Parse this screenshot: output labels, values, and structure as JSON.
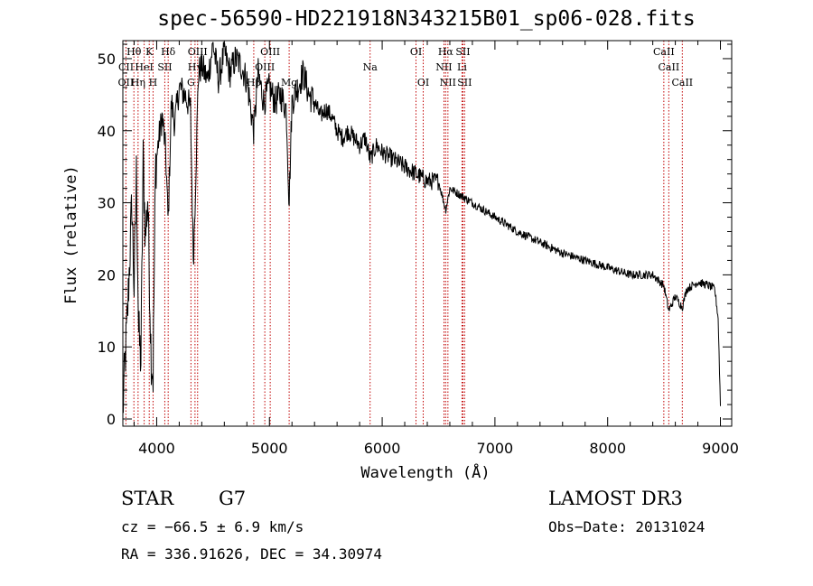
{
  "chart_data": {
    "type": "line",
    "title": "spec-56590-HD221918N343215B01_sp06-028.fits",
    "xlabel": "Wavelength (Å)",
    "ylabel": "Flux (relative)",
    "xlim": [
      3700,
      9100
    ],
    "ylim": [
      -1,
      52.5
    ],
    "xticks": [
      4000,
      5000,
      6000,
      7000,
      8000,
      9000
    ],
    "yticks": [
      0,
      10,
      20,
      30,
      40,
      50
    ],
    "series": [
      {
        "name": "flux",
        "x": [
          3700,
          3720,
          3740,
          3760,
          3780,
          3800,
          3820,
          3840,
          3860,
          3880,
          3900,
          3920,
          3935,
          3950,
          3968,
          3990,
          4020,
          4050,
          4080,
          4102,
          4130,
          4160,
          4200,
          4250,
          4300,
          4325,
          4340,
          4370,
          4400,
          4450,
          4500,
          4550,
          4600,
          4650,
          4700,
          4750,
          4800,
          4861,
          4900,
          4950,
          5000,
          5050,
          5100,
          5150,
          5175,
          5200,
          5250,
          5300,
          5350,
          5400,
          5450,
          5500,
          5550,
          5600,
          5650,
          5700,
          5750,
          5800,
          5850,
          5893,
          5950,
          6000,
          6100,
          6200,
          6300,
          6400,
          6500,
          6563,
          6600,
          6700,
          6800,
          7000,
          7200,
          7400,
          7600,
          7800,
          8000,
          8200,
          8400,
          8498,
          8542,
          8600,
          8662,
          8700,
          8800,
          8900,
          8950,
          8980,
          9000
        ],
        "values": [
          1,
          8,
          14,
          22,
          30,
          18,
          34,
          12,
          8,
          36,
          25,
          31,
          20,
          9,
          6,
          35,
          39,
          42,
          37,
          27,
          44,
          41,
          46,
          45,
          43,
          22,
          30,
          48,
          49,
          47,
          52,
          47,
          51,
          48,
          50,
          49,
          47,
          40,
          48,
          44,
          46,
          44,
          45,
          43,
          30,
          44,
          46,
          48,
          45,
          44,
          42,
          43,
          42,
          40,
          39,
          40,
          39,
          38,
          39,
          36,
          38,
          37,
          36,
          35,
          34,
          33,
          33,
          29,
          32,
          31,
          30,
          28,
          26,
          24.5,
          23,
          22,
          21,
          20,
          20,
          18.5,
          15,
          17,
          15.5,
          18,
          19,
          18.5,
          18,
          14,
          2
        ]
      }
    ],
    "line_labels": [
      {
        "text": "Hθ",
        "wl": 3798,
        "row": 0
      },
      {
        "text": "K",
        "wl": 3934,
        "row": 0
      },
      {
        "text": "Hδ",
        "wl": 4102,
        "row": 0
      },
      {
        "text": "OIII",
        "wl": 4363,
        "row": 0
      },
      {
        "text": "OIII",
        "wl": 5007,
        "row": 0
      },
      {
        "text": "OI",
        "wl": 6300,
        "row": 0
      },
      {
        "text": "Hα",
        "wl": 6563,
        "row": 0
      },
      {
        "text": "SII",
        "wl": 6716,
        "row": 0
      },
      {
        "text": "CaII",
        "wl": 8498,
        "row": 0
      },
      {
        "text": "CII",
        "wl": 3728,
        "row": 1
      },
      {
        "text": "HeI",
        "wl": 3889,
        "row": 1
      },
      {
        "text": "SII",
        "wl": 4072,
        "row": 1
      },
      {
        "text": "Hγ",
        "wl": 4340,
        "row": 1
      },
      {
        "text": "OIII",
        "wl": 4959,
        "row": 1
      },
      {
        "text": "Na",
        "wl": 5893,
        "row": 1
      },
      {
        "text": "NII",
        "wl": 6548,
        "row": 1
      },
      {
        "text": "Li",
        "wl": 6708,
        "row": 1
      },
      {
        "text": "CaII",
        "wl": 8542,
        "row": 1
      },
      {
        "text": "OII",
        "wl": 3727,
        "row": 2
      },
      {
        "text": "Hη",
        "wl": 3835,
        "row": 2
      },
      {
        "text": "H",
        "wl": 3968,
        "row": 2
      },
      {
        "text": "G",
        "wl": 4304,
        "row": 2
      },
      {
        "text": "Hβ",
        "wl": 4861,
        "row": 2
      },
      {
        "text": "Mg",
        "wl": 5175,
        "row": 2
      },
      {
        "text": "OI",
        "wl": 6364,
        "row": 2
      },
      {
        "text": "NII",
        "wl": 6583,
        "row": 2
      },
      {
        "text": "SII",
        "wl": 6731,
        "row": 2
      },
      {
        "text": "CaII",
        "wl": 8662,
        "row": 2
      }
    ],
    "line_wavelengths": [
      3727,
      3798,
      3835,
      3889,
      3934,
      3968,
      4072,
      4102,
      4304,
      4340,
      4363,
      4861,
      4959,
      5007,
      5175,
      5893,
      6300,
      6364,
      6548,
      6563,
      6583,
      6708,
      6716,
      6731,
      8498,
      8542,
      8662
    ],
    "line_color": "#c00000"
  },
  "info": {
    "class": "STAR",
    "subclass": "G7",
    "survey": "LAMOST DR3",
    "cz": "cz = −66.5 ± 6.9 km/s",
    "obs_date": "Obs−Date: 20131024",
    "radec": "RA = 336.91626, DEC =  34.30974"
  }
}
